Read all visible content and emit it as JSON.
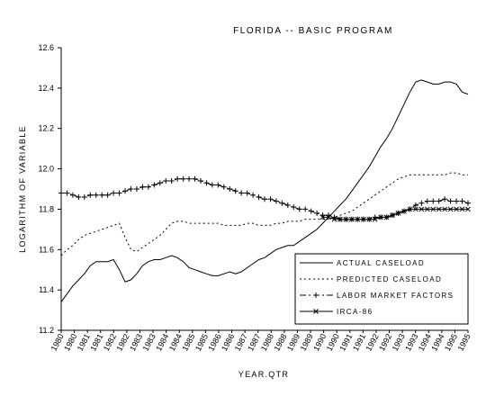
{
  "chart_data": {
    "type": "line",
    "title": "FLORIDA  --  BASIC PROGRAM",
    "xlabel": "YEAR.QTR",
    "ylabel": "LOGARITHM OF VARIABLE",
    "ylim": [
      11.2,
      12.6
    ],
    "yticks": [
      "11.2",
      "11.4",
      "11.6",
      "11.8",
      "12.0",
      "12.2",
      "12.4",
      "12.6"
    ],
    "x_tick_labels": [
      "1980",
      "1980",
      "1981",
      "1981",
      "1982",
      "1982",
      "1983",
      "1983",
      "1984",
      "1984",
      "1985",
      "1985",
      "1986",
      "1986",
      "1987",
      "1987",
      "1988",
      "1988",
      "1989",
      "1989",
      "1990",
      "1990",
      "1991",
      "1991",
      "1992",
      "1992",
      "1993",
      "1993",
      "1994",
      "1994",
      "1995",
      "1995"
    ],
    "grid": false,
    "legend_position": "lower-right",
    "series": [
      {
        "name": "ACTUAL CASELOAD",
        "style": "solid",
        "marker": "none",
        "values": [
          11.34,
          11.38,
          11.42,
          11.45,
          11.48,
          11.52,
          11.54,
          11.54,
          11.54,
          11.55,
          11.5,
          11.44,
          11.45,
          11.48,
          11.52,
          11.54,
          11.55,
          11.55,
          11.56,
          11.57,
          11.56,
          11.54,
          11.51,
          11.5,
          11.49,
          11.48,
          11.47,
          11.47,
          11.48,
          11.49,
          11.48,
          11.49,
          11.51,
          11.53,
          11.55,
          11.56,
          11.58,
          11.6,
          11.61,
          11.62,
          11.62,
          11.64,
          11.66,
          11.68,
          11.7,
          11.73,
          11.76,
          11.79,
          11.82,
          11.85,
          11.89,
          11.93,
          11.97,
          12.01,
          12.06,
          12.11,
          12.15,
          12.2,
          12.26,
          12.32,
          12.38,
          12.43,
          12.44,
          12.43,
          12.42,
          12.42,
          12.43,
          12.43,
          12.42,
          12.38,
          12.37
        ]
      },
      {
        "name": "PREDICTED CASELOAD",
        "style": "dotted",
        "marker": "none",
        "values": [
          11.57,
          11.6,
          11.62,
          11.65,
          11.67,
          11.68,
          11.69,
          11.7,
          11.71,
          11.72,
          11.73,
          11.66,
          11.6,
          11.59,
          11.61,
          11.63,
          11.65,
          11.67,
          11.7,
          11.73,
          11.74,
          11.74,
          11.73,
          11.73,
          11.73,
          11.73,
          11.73,
          11.73,
          11.72,
          11.72,
          11.72,
          11.72,
          11.73,
          11.73,
          11.72,
          11.72,
          11.72,
          11.73,
          11.73,
          11.74,
          11.74,
          11.74,
          11.75,
          11.75,
          11.75,
          11.75,
          11.75,
          11.76,
          11.77,
          11.78,
          11.79,
          11.81,
          11.83,
          11.85,
          11.87,
          11.89,
          11.91,
          11.93,
          11.95,
          11.96,
          11.97,
          11.97,
          11.97,
          11.97,
          11.97,
          11.97,
          11.97,
          11.98,
          11.98,
          11.97,
          11.97
        ]
      },
      {
        "name": "LABOR MARKET FACTORS",
        "style": "dashdot",
        "marker": "plus",
        "values": [
          11.88,
          11.88,
          11.87,
          11.86,
          11.86,
          11.87,
          11.87,
          11.87,
          11.87,
          11.88,
          11.88,
          11.89,
          11.9,
          11.9,
          11.91,
          11.91,
          11.92,
          11.93,
          11.94,
          11.94,
          11.95,
          11.95,
          11.95,
          11.95,
          11.94,
          11.93,
          11.92,
          11.92,
          11.91,
          11.9,
          11.89,
          11.88,
          11.88,
          11.87,
          11.86,
          11.85,
          11.85,
          11.84,
          11.83,
          11.82,
          11.81,
          11.8,
          11.8,
          11.79,
          11.78,
          11.77,
          11.77,
          11.76,
          11.75,
          11.75,
          11.75,
          11.75,
          11.75,
          11.75,
          11.76,
          11.76,
          11.76,
          11.77,
          11.78,
          11.79,
          11.8,
          11.82,
          11.83,
          11.84,
          11.84,
          11.84,
          11.85,
          11.84,
          11.84,
          11.84,
          11.83
        ]
      },
      {
        "name": "IRCA-86",
        "style": "solid",
        "marker": "x",
        "values": [
          null,
          null,
          null,
          null,
          null,
          null,
          null,
          null,
          null,
          null,
          null,
          null,
          null,
          null,
          null,
          null,
          null,
          null,
          null,
          null,
          null,
          null,
          null,
          null,
          null,
          null,
          null,
          null,
          null,
          null,
          null,
          null,
          null,
          null,
          null,
          null,
          null,
          null,
          null,
          null,
          null,
          null,
          null,
          null,
          null,
          11.76,
          11.76,
          11.75,
          11.75,
          11.75,
          11.75,
          11.75,
          11.75,
          11.75,
          11.75,
          11.76,
          11.76,
          11.77,
          11.78,
          11.79,
          11.8,
          11.8,
          11.8,
          11.8,
          11.8,
          11.8,
          11.8,
          11.8,
          11.8,
          11.8,
          11.8
        ]
      }
    ]
  }
}
